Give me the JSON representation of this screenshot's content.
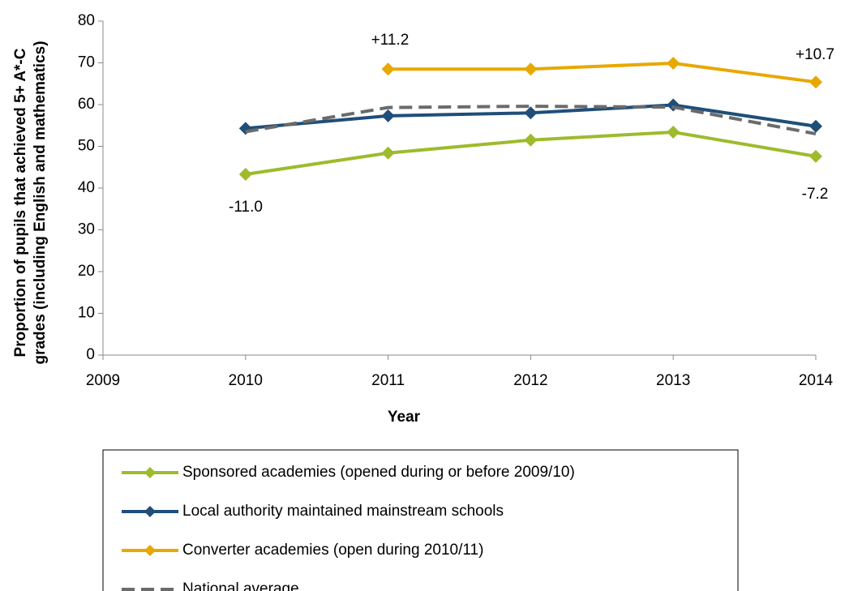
{
  "chart_data": {
    "type": "line",
    "x": [
      2010,
      2011,
      2012,
      2013,
      2014
    ],
    "xlim": [
      2009,
      2014
    ],
    "xticks": [
      2009,
      2010,
      2011,
      2012,
      2013,
      2014
    ],
    "ylim": [
      0,
      80
    ],
    "yticks": [
      0,
      10,
      20,
      30,
      40,
      50,
      60,
      70,
      80
    ],
    "xlabel": "Year",
    "ylabel": [
      "Proportion of pupils that achieved  5+ A*-C",
      "grades (including English and mathematics)"
    ],
    "annotations": [
      "+11.2",
      "+10.7",
      "-11.0",
      "-7.2"
    ],
    "series": [
      {
        "name": "Sponsored academies (opened during or before 2009/10)",
        "color": "#9dbb2c",
        "dashed": false,
        "marker": true,
        "values": [
          43.3,
          48.4,
          51.5,
          53.4,
          47.6
        ]
      },
      {
        "name": "Local authority maintained  mainstream  schools",
        "color": "#1f4e79",
        "dashed": false,
        "marker": true,
        "values": [
          54.3,
          57.3,
          58.0,
          59.9,
          54.8
        ]
      },
      {
        "name": "Converter academies (open during 2010/11)",
        "color": "#e8a800",
        "dashed": false,
        "marker": true,
        "values": [
          null,
          68.5,
          68.5,
          69.9,
          65.4
        ]
      },
      {
        "name": "National average",
        "color": "#6b6b6b",
        "dashed": true,
        "marker": false,
        "values": [
          53.5,
          59.3,
          59.6,
          59.4,
          53.0
        ]
      }
    ]
  }
}
